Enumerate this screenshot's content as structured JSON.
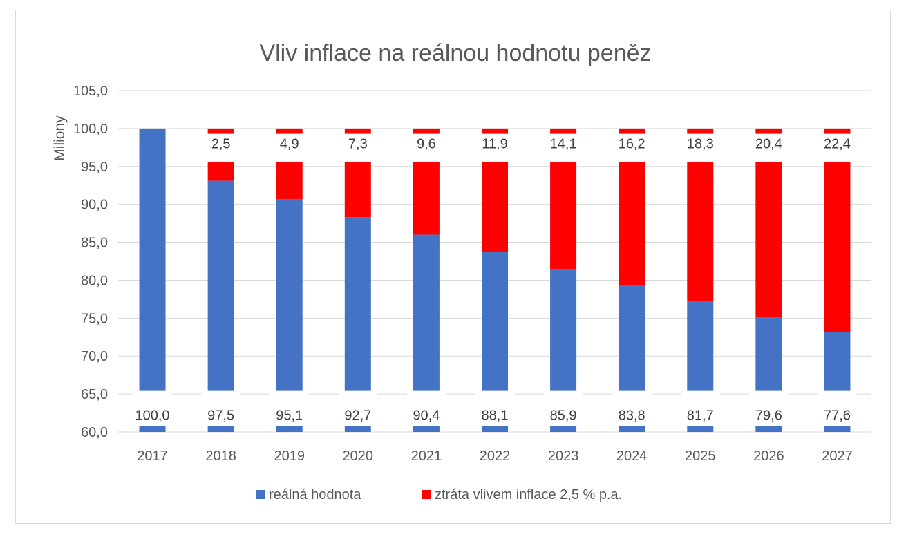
{
  "chart_data": {
    "type": "bar",
    "title": "Vliv inflace na reálnou hodnotu peněz",
    "ylabel": "Miliony",
    "xlabel": "",
    "categories": [
      "2017",
      "2018",
      "2019",
      "2020",
      "2021",
      "2022",
      "2023",
      "2024",
      "2025",
      "2026",
      "2027"
    ],
    "y_ticks": [
      "60,0",
      "65,0",
      "70,0",
      "75,0",
      "80,0",
      "85,0",
      "90,0",
      "95,0",
      "100,0",
      "105,0"
    ],
    "ylim": [
      60,
      105
    ],
    "axis_break": "Osa přerušena mezi 60,8 a 95,6 (hodnoty 100 se 'stáčí' mezi 95,6 a 100,0)",
    "grid": true,
    "legend_position": "bottom",
    "series": [
      {
        "name": "reálná hodnota",
        "color": "#4472C4",
        "values": [
          100.0,
          97.5,
          95.1,
          92.7,
          90.4,
          88.1,
          85.9,
          83.8,
          81.7,
          79.6,
          77.6
        ],
        "labels": [
          "100,0",
          "97,5",
          "95,1",
          "92,7",
          "90,4",
          "88,1",
          "85,9",
          "83,8",
          "81,7",
          "79,6",
          "77,6"
        ]
      },
      {
        "name": "ztráta vlivem inflace 2,5 % p.a.",
        "color": "#FF0000",
        "values": [
          0,
          2.5,
          4.9,
          7.3,
          9.6,
          11.9,
          14.1,
          16.2,
          18.3,
          20.4,
          22.4
        ],
        "labels": [
          "",
          "2,5",
          "4,9",
          "7,3",
          "9,6",
          "11,9",
          "14,1",
          "16,2",
          "18,3",
          "20,4",
          "22,4"
        ]
      }
    ]
  }
}
